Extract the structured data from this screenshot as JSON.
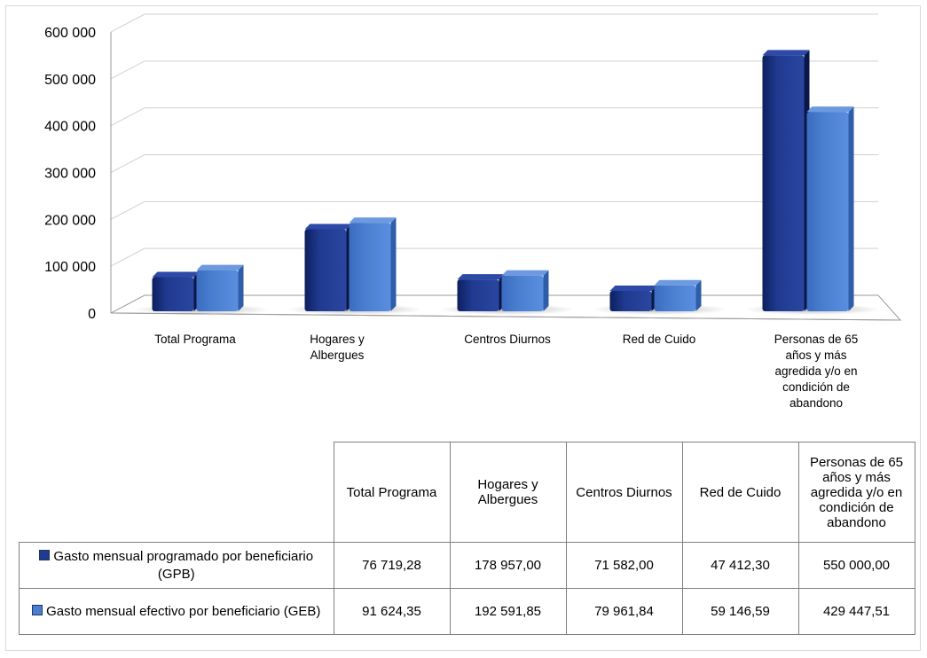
{
  "chart_data": {
    "type": "bar",
    "categories": [
      "Total Programa",
      "Hogares y Albergues",
      "Centros Diurnos",
      "Red de Cuido",
      "Personas de 65 años y más agredida y/o en condición de abandono"
    ],
    "series": [
      {
        "name": "Gasto mensual programado por beneficiario (GPB)",
        "values": [
          76719.28,
          178957.0,
          71582.0,
          47412.3,
          550000.0
        ],
        "color": "#1f3a8f"
      },
      {
        "name": "Gasto mensual efectivo por beneficiario (GEB)",
        "values": [
          91624.35,
          192591.85,
          79961.84,
          59146.59,
          429447.51
        ],
        "color": "#4a7fd0"
      }
    ],
    "ylim": [
      0,
      600000
    ],
    "yticks": [
      "0",
      "100 000",
      "200 000",
      "300 000",
      "400 000",
      "500 000",
      "600 000"
    ],
    "grid": true,
    "title": "",
    "xlabel": "",
    "ylabel": ""
  },
  "table": {
    "headers": [
      "Total Programa",
      "Hogares y Albergues",
      "Centros Diurnos",
      "Red de Cuido",
      "Personas de 65 años y más agredida y/o en condición de abandono"
    ],
    "rows": [
      {
        "label": "Gasto mensual programado por beneficiario (GPB)",
        "values": [
          "76 719,28",
          "178 957,00",
          "71 582,00",
          "47 412,30",
          "550 000,00"
        ]
      },
      {
        "label": "Gasto mensual efectivo por beneficiario (GEB)",
        "values": [
          "91 624,35",
          "192 591,85",
          "79 961,84",
          "59 146,59",
          "429 447,51"
        ]
      }
    ]
  }
}
